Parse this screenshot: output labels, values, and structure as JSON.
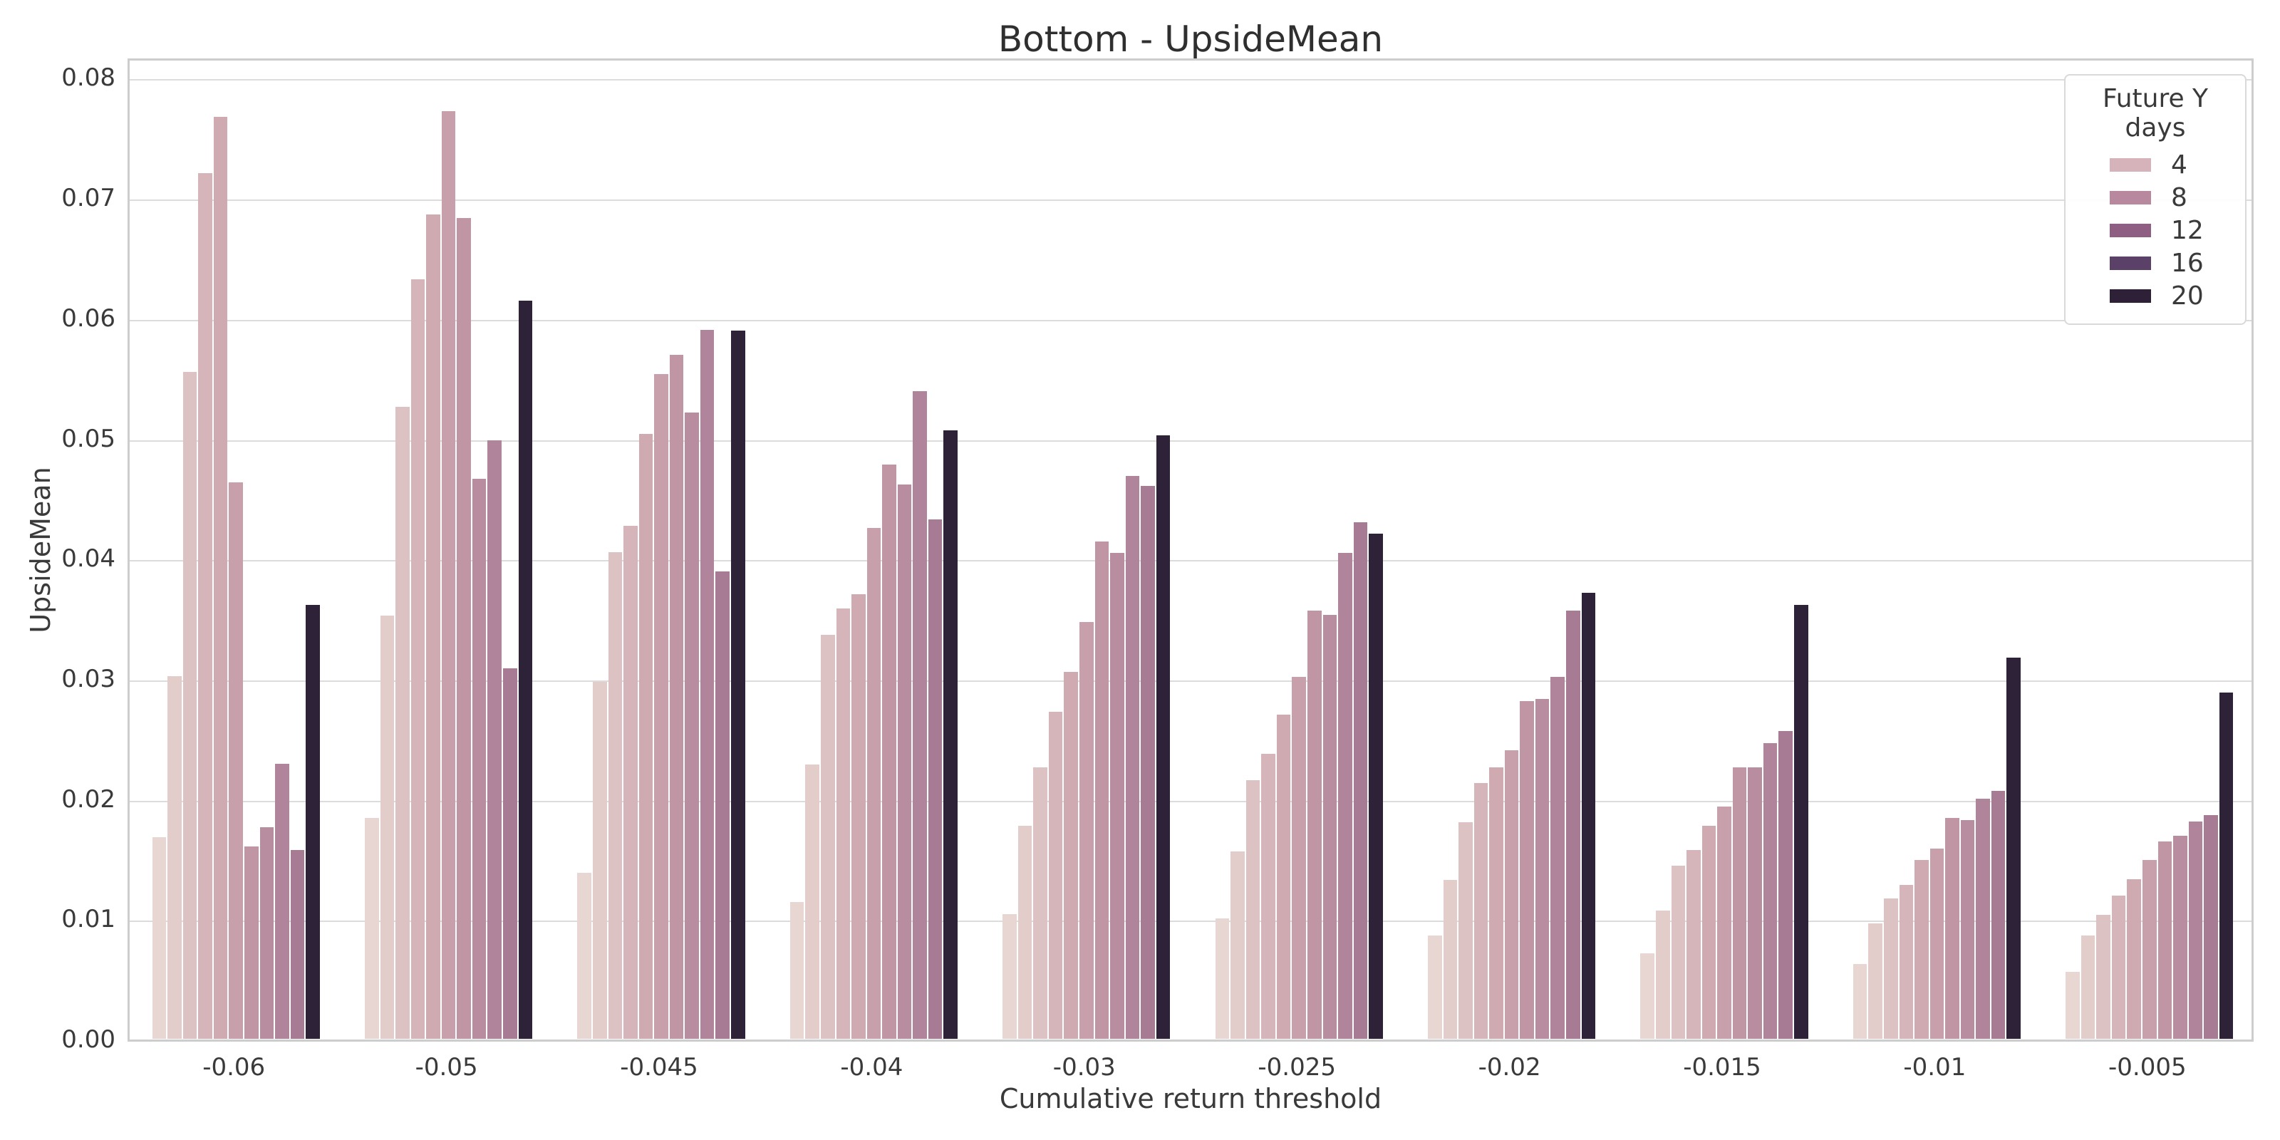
{
  "chart_data": {
    "type": "bar",
    "title": "Bottom - UpsideMean",
    "xlabel": "Cumulative return threshold",
    "ylabel": "UpsideMean",
    "categories": [
      "-0.06",
      "-0.05",
      "-0.045",
      "-0.04",
      "-0.03",
      "-0.025",
      "-0.02",
      "-0.015",
      "-0.01",
      "-0.005"
    ],
    "ylim": [
      0,
      0.08
    ],
    "ytick_labels": [
      "0.00",
      "0.01",
      "0.02",
      "0.03",
      "0.04",
      "0.05",
      "0.06",
      "0.07",
      "0.08"
    ],
    "grid": "horizontal",
    "legend": {
      "title": "Future Y days",
      "position": "upper right",
      "entries": [
        {
          "label": "4",
          "color": "#d6b2bb"
        },
        {
          "label": "8",
          "color": "#b8899e"
        },
        {
          "label": "12",
          "color": "#8e5f83"
        },
        {
          "label": "16",
          "color": "#5b4068"
        },
        {
          "label": "20",
          "color": "#2e2137"
        }
      ]
    },
    "series": [
      {
        "name": "hue-1",
        "color": "#e8d6d2",
        "values": [
          0.0168,
          0.0184,
          0.0138,
          0.0114,
          0.0104,
          0.01,
          0.0086,
          0.0071,
          0.0062,
          0.0056
        ]
      },
      {
        "name": "hue-2",
        "color": "#e3cdca",
        "values": [
          0.0302,
          0.0352,
          0.0297,
          0.0228,
          0.0177,
          0.0156,
          0.0132,
          0.0107,
          0.0096,
          0.0086
        ]
      },
      {
        "name": "hue-3",
        "color": "#dcc2c2",
        "values": [
          0.0555,
          0.0526,
          0.0405,
          0.0336,
          0.0226,
          0.0215,
          0.018,
          0.0144,
          0.0117,
          0.0103
        ]
      },
      {
        "name": "hue-4",
        "color": "#d6b5ba",
        "values": [
          0.072,
          0.0632,
          0.0427,
          0.0358,
          0.0272,
          0.0237,
          0.0213,
          0.0157,
          0.0128,
          0.0119
        ]
      },
      {
        "name": "hue-5",
        "color": "#cfaab1",
        "values": [
          0.0767,
          0.0686,
          0.0503,
          0.037,
          0.0305,
          0.027,
          0.0226,
          0.0177,
          0.0149,
          0.0133
        ]
      },
      {
        "name": "hue-6",
        "color": "#c8a0ab",
        "values": [
          0.0463,
          0.0772,
          0.0553,
          0.0425,
          0.0347,
          0.0301,
          0.024,
          0.0193,
          0.0158,
          0.0149
        ]
      },
      {
        "name": "hue-7",
        "color": "#c096a4",
        "values": [
          0.016,
          0.0683,
          0.0569,
          0.0478,
          0.0414,
          0.0356,
          0.0281,
          0.0226,
          0.0184,
          0.0164
        ]
      },
      {
        "name": "hue-8",
        "color": "#b88da0",
        "values": [
          0.0176,
          0.0466,
          0.0521,
          0.0461,
          0.0404,
          0.0353,
          0.0283,
          0.0226,
          0.0182,
          0.0169
        ]
      },
      {
        "name": "hue-9",
        "color": "#b0849b",
        "values": [
          0.0229,
          0.0498,
          0.059,
          0.0539,
          0.0468,
          0.0404,
          0.0301,
          0.0246,
          0.02,
          0.0181
        ]
      },
      {
        "name": "hue-10",
        "color": "#a87b95",
        "values": [
          0.0157,
          0.0308,
          0.0389,
          0.0432,
          0.046,
          0.043,
          0.0356,
          0.0256,
          0.0206,
          0.0186
        ]
      },
      {
        "name": "hue-11",
        "color": "#2e2239",
        "values": [
          0.0361,
          0.0614,
          0.0589,
          0.0506,
          0.0502,
          0.042,
          0.0371,
          0.0361,
          0.0317,
          0.0288
        ]
      }
    ]
  }
}
